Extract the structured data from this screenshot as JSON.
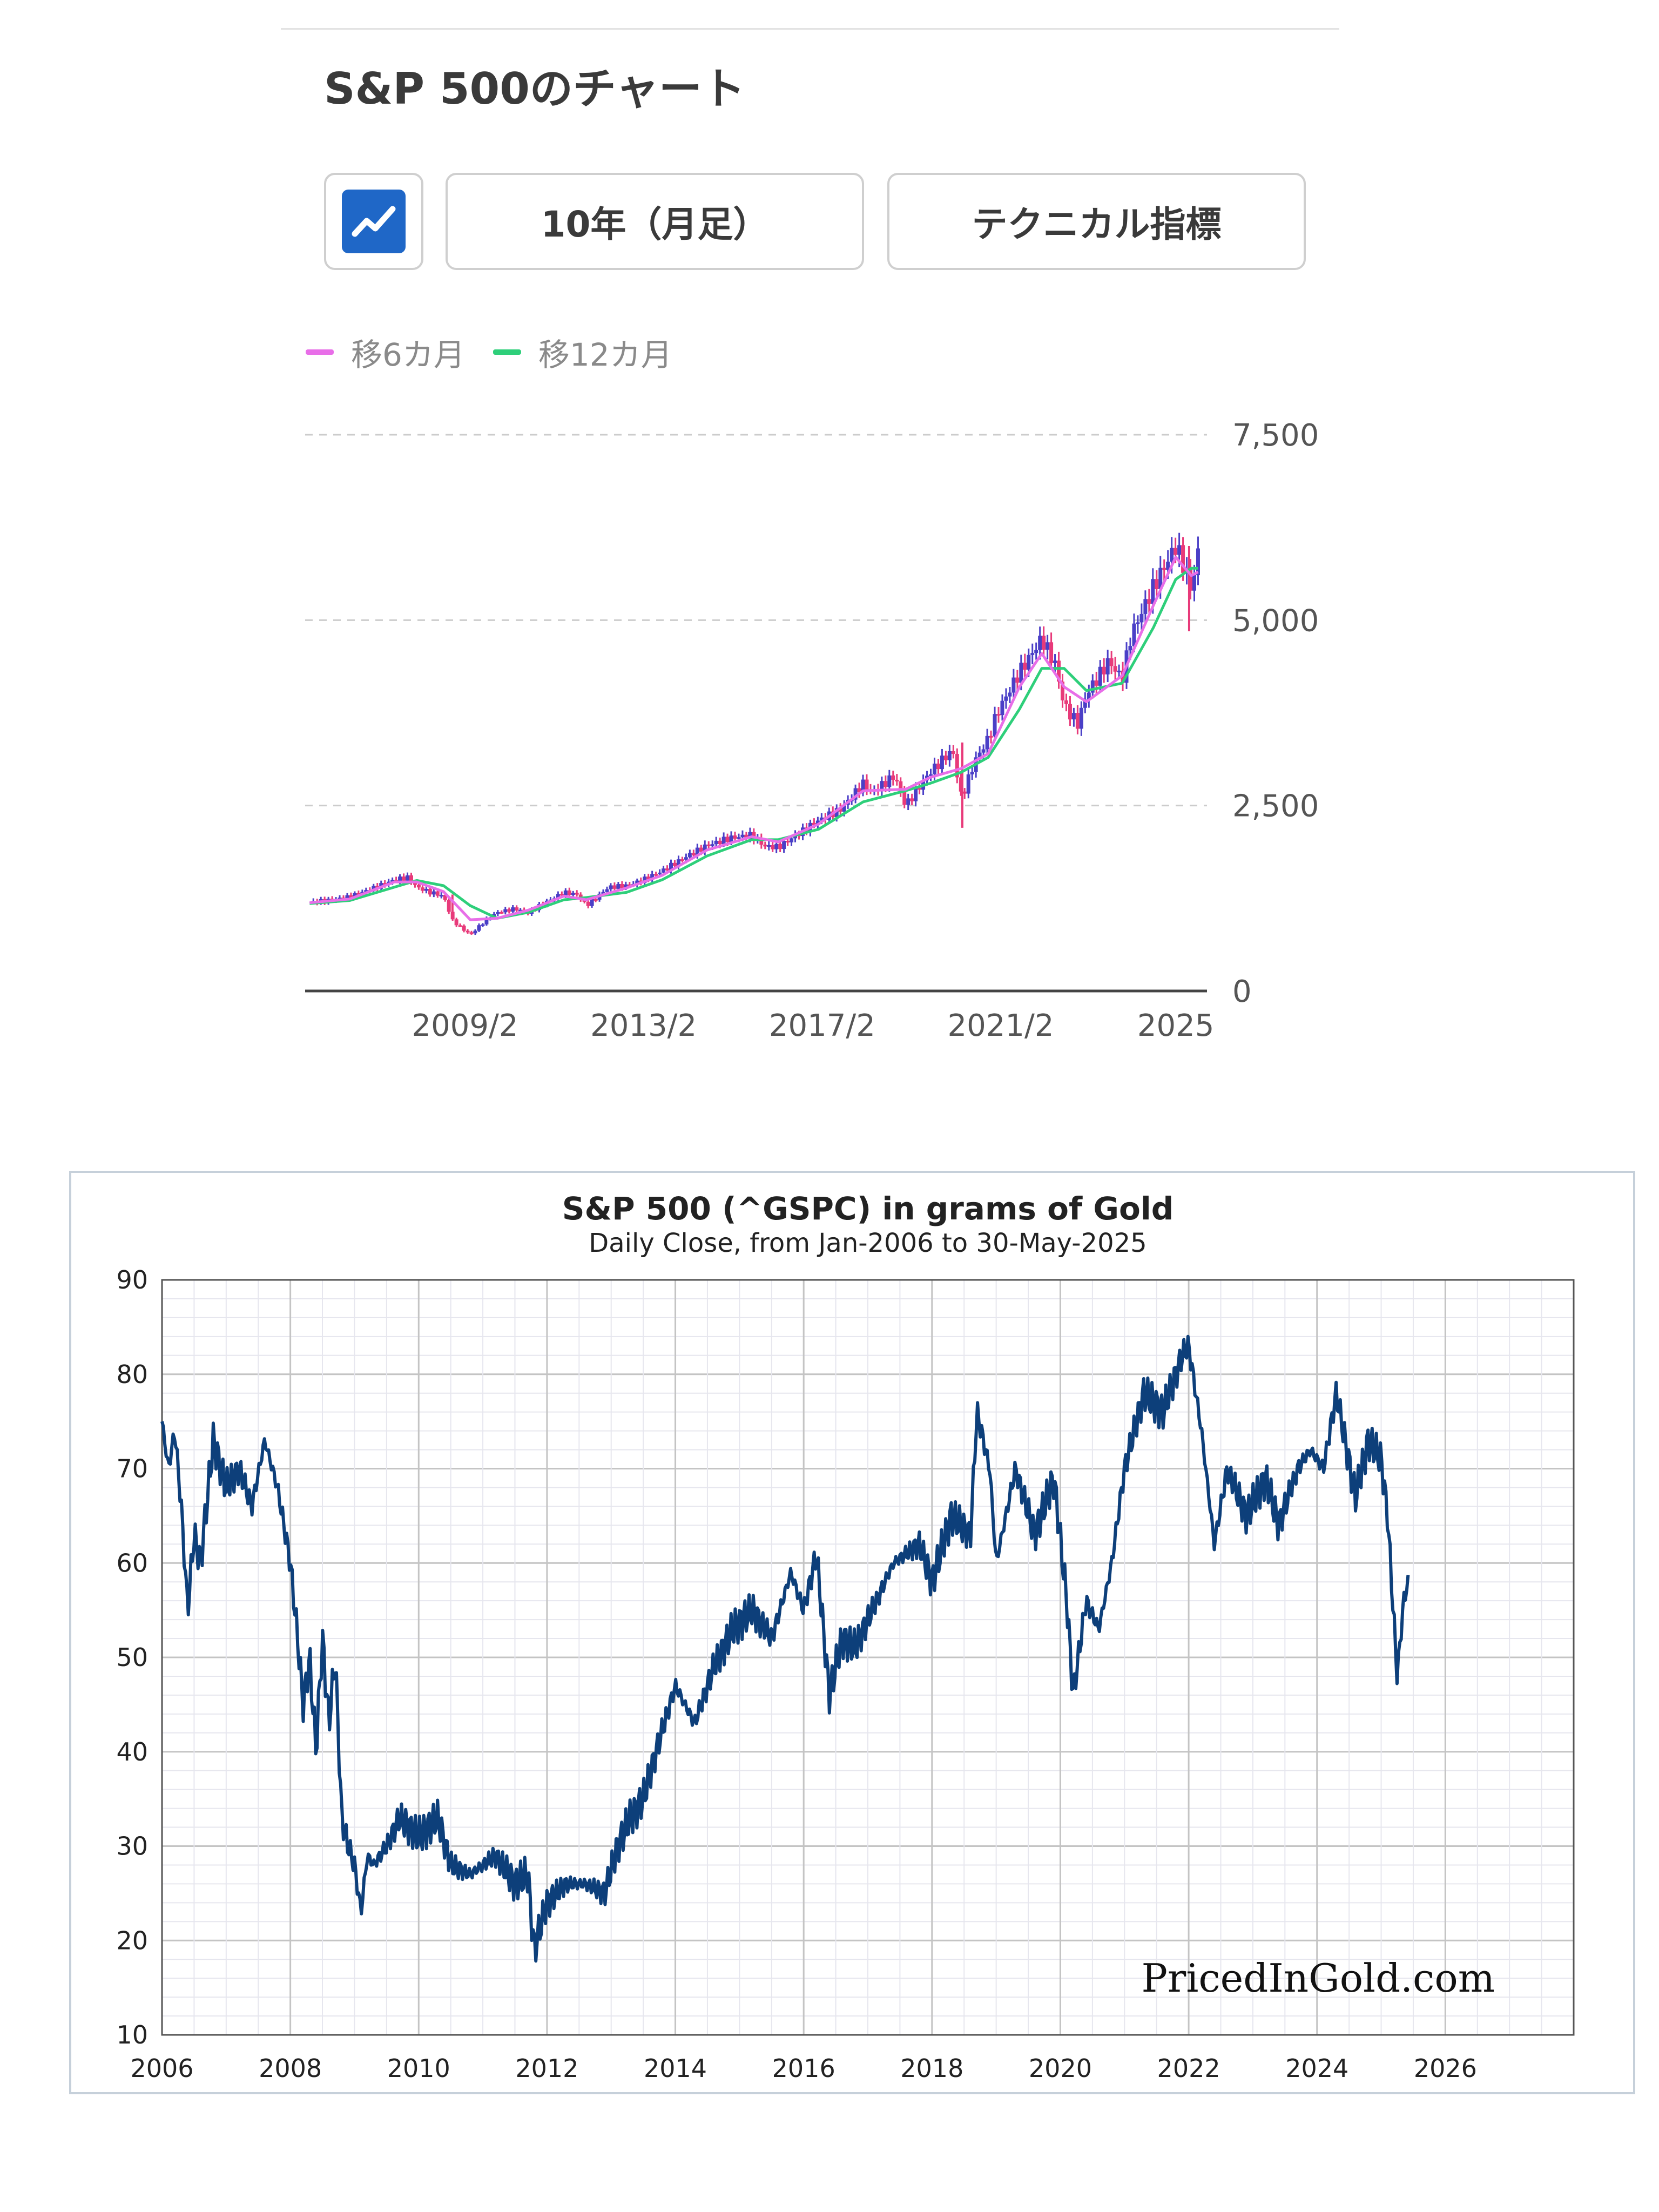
{
  "header": {
    "title": "S&P 500のチャート"
  },
  "controls": {
    "chart_type_icon": "line-chart-icon",
    "period_label": "10年（月足）",
    "indicator_label": "テクニカル指標"
  },
  "legend": [
    {
      "label": "移6カ月",
      "color": "#e86ee8"
    },
    {
      "label": "移12カ月",
      "color": "#2ecf7a"
    }
  ],
  "colors": {
    "up": "#4a3fc7",
    "down": "#e83a7a",
    "line2": "#0d3f7a",
    "icon_bg": "#1f67c7"
  },
  "chart_data": [
    {
      "type": "candlestick",
      "title": "",
      "x_tick_labels": [
        "2009/2",
        "2013/2",
        "2017/2",
        "2021/2",
        "2025"
      ],
      "x_ticks": [
        2009.08,
        2013.08,
        2017.08,
        2021.08,
        2025.0
      ],
      "xlim": [
        2005.5,
        2025.7
      ],
      "y_ticks": [
        0,
        2500,
        5000,
        7500
      ],
      "y_tick_labels": [
        "0",
        "2,500",
        "5,000",
        "7,500"
      ],
      "ylim": [
        0,
        7500
      ],
      "grid": true,
      "legend_position": "top-left",
      "series": [
        {
          "name": "close",
          "x": [
            2005.6,
            2006.0,
            2006.5,
            2007.0,
            2007.5,
            2007.8,
            2008.0,
            2008.3,
            2008.6,
            2008.8,
            2009.0,
            2009.2,
            2009.5,
            2009.8,
            2010.2,
            2010.5,
            2010.8,
            2011.3,
            2011.6,
            2011.8,
            2012.3,
            2012.7,
            2013.0,
            2013.5,
            2014.0,
            2014.5,
            2015.0,
            2015.5,
            2015.8,
            2016.1,
            2016.5,
            2017.0,
            2017.5,
            2018.0,
            2018.2,
            2018.7,
            2018.95,
            2019.5,
            2020.0,
            2020.2,
            2020.5,
            2020.8,
            2021.0,
            2021.5,
            2022.0,
            2022.3,
            2022.5,
            2022.8,
            2023.0,
            2023.5,
            2023.8,
            2024.0,
            2024.5,
            2025.0,
            2025.2,
            2025.35,
            2025.5
          ],
          "y": [
            1200,
            1220,
            1270,
            1380,
            1500,
            1530,
            1400,
            1330,
            1280,
            950,
            850,
            760,
            930,
            1060,
            1110,
            1050,
            1170,
            1330,
            1300,
            1150,
            1400,
            1420,
            1480,
            1620,
            1800,
            1960,
            2060,
            2100,
            1950,
            1940,
            2100,
            2300,
            2450,
            2800,
            2680,
            2900,
            2500,
            2950,
            3250,
            2600,
            3100,
            3400,
            3750,
            4300,
            4750,
            4400,
            3850,
            3600,
            4000,
            4450,
            4200,
            4800,
            5450,
            6000,
            5700,
            5400,
            5900
          ]
        },
        {
          "name": "移6カ月",
          "x": [
            2005.6,
            2006.5,
            2007.5,
            2008.0,
            2008.6,
            2009.2,
            2009.8,
            2010.5,
            2011.3,
            2011.8,
            2012.7,
            2013.5,
            2014.5,
            2015.5,
            2016.1,
            2017.0,
            2018.0,
            2018.95,
            2019.5,
            2020.2,
            2020.8,
            2021.5,
            2022.0,
            2022.5,
            2023.0,
            2023.8,
            2024.5,
            2025.0,
            2025.35,
            2025.5
          ],
          "y": [
            1190,
            1240,
            1470,
            1470,
            1340,
            960,
            980,
            1090,
            1280,
            1230,
            1390,
            1560,
            1900,
            2080,
            2010,
            2250,
            2700,
            2720,
            2880,
            3000,
            3200,
            4100,
            4550,
            4100,
            3900,
            4250,
            5200,
            5850,
            5600,
            5650
          ]
        },
        {
          "name": "移12カ月",
          "x": [
            2005.6,
            2006.5,
            2007.5,
            2008.0,
            2008.6,
            2009.2,
            2009.8,
            2010.5,
            2011.3,
            2011.8,
            2012.7,
            2013.5,
            2014.5,
            2015.5,
            2016.1,
            2017.0,
            2018.0,
            2018.95,
            2019.5,
            2020.2,
            2020.8,
            2021.5,
            2022.0,
            2022.5,
            2023.0,
            2023.8,
            2024.5,
            2025.0,
            2025.35,
            2025.5
          ],
          "y": [
            1180,
            1220,
            1400,
            1490,
            1420,
            1150,
            980,
            1060,
            1230,
            1260,
            1330,
            1500,
            1820,
            2040,
            2040,
            2180,
            2550,
            2700,
            2800,
            2950,
            3150,
            3800,
            4350,
            4350,
            4050,
            4150,
            4900,
            5550,
            5700,
            5700
          ]
        }
      ]
    },
    {
      "type": "line",
      "title": "S&P 500 (^GSPC) in grams of Gold",
      "subtitle": "Daily Close, from Jan-2006 to 30-May-2025",
      "watermark": "PricedInGold.com",
      "xlim": [
        2006,
        2028
      ],
      "x_ticks": [
        2006,
        2008,
        2010,
        2012,
        2014,
        2016,
        2018,
        2020,
        2022,
        2024,
        2026
      ],
      "ylim": [
        10,
        90
      ],
      "y_ticks": [
        10,
        20,
        30,
        40,
        50,
        60,
        70,
        80,
        90
      ],
      "grid": true,
      "series": [
        {
          "name": "",
          "x": [
            2006.0,
            2006.1,
            2006.2,
            2006.3,
            2006.4,
            2006.5,
            2006.6,
            2006.8,
            2007.0,
            2007.2,
            2007.4,
            2007.6,
            2007.8,
            2008.0,
            2008.1,
            2008.2,
            2008.3,
            2008.4,
            2008.5,
            2008.6,
            2008.7,
            2008.8,
            2008.9,
            2009.0,
            2009.1,
            2009.2,
            2009.3,
            2009.5,
            2009.7,
            2010.0,
            2010.3,
            2010.5,
            2010.8,
            2011.0,
            2011.2,
            2011.5,
            2011.7,
            2011.8,
            2012.0,
            2012.3,
            2012.6,
            2012.9,
            2013.1,
            2013.3,
            2013.5,
            2013.7,
            2014.0,
            2014.3,
            2014.6,
            2014.9,
            2015.2,
            2015.5,
            2015.8,
            2016.0,
            2016.2,
            2016.4,
            2016.6,
            2016.8,
            2017.0,
            2017.4,
            2017.8,
            2018.0,
            2018.3,
            2018.6,
            2018.7,
            2018.9,
            2019.0,
            2019.3,
            2019.6,
            2019.9,
            2020.1,
            2020.2,
            2020.4,
            2020.6,
            2020.8,
            2021.0,
            2021.3,
            2021.6,
            2021.9,
            2022.0,
            2022.2,
            2022.4,
            2022.6,
            2022.9,
            2023.2,
            2023.4,
            2023.7,
            2023.9,
            2024.1,
            2024.3,
            2024.6,
            2024.8,
            2025.0,
            2025.1,
            2025.25,
            2025.35,
            2025.42
          ],
          "y": [
            75,
            70,
            74,
            66,
            55,
            63,
            60,
            73,
            68,
            70,
            66,
            73,
            68,
            60,
            53,
            45,
            50,
            40,
            52,
            43,
            50,
            33,
            30,
            28,
            23,
            29,
            28,
            30,
            33,
            31,
            33,
            28,
            27,
            28,
            29,
            26,
            27,
            19,
            24,
            26,
            26,
            25,
            30,
            33,
            35,
            40,
            47,
            43,
            49,
            53,
            55,
            52,
            59,
            55,
            61,
            46,
            52,
            51,
            54,
            60,
            62,
            58,
            65,
            63,
            76,
            70,
            60,
            70,
            63,
            69,
            56,
            46,
            56,
            53,
            60,
            70,
            78,
            76,
            82,
            83,
            74,
            62,
            70,
            65,
            69,
            64,
            70,
            72,
            70,
            78,
            67,
            73,
            71,
            65,
            48,
            56,
            58
          ]
        }
      ]
    }
  ]
}
